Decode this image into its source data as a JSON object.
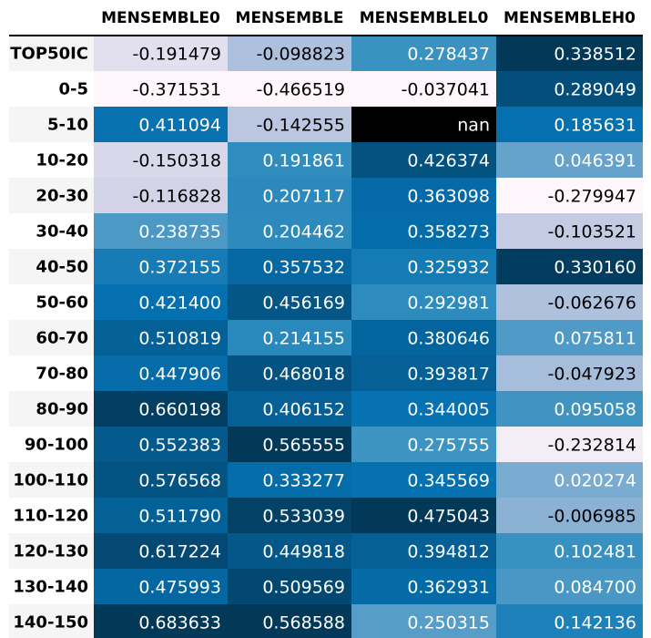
{
  "chart_data": {
    "type": "heatmap",
    "columns": [
      "MENSEMBLE0",
      "MENSEMBLE",
      "MENSEMBLEL0",
      "MENSEMBLEH0"
    ],
    "rows": [
      "TOP50IC",
      "0-5",
      "5-10",
      "10-20",
      "20-30",
      "30-40",
      "40-50",
      "50-60",
      "60-70",
      "70-80",
      "80-90",
      "90-100",
      "100-110",
      "110-120",
      "120-130",
      "130-140",
      "140-150"
    ],
    "values": [
      [
        -0.191479,
        -0.098823,
        0.278437,
        0.338512
      ],
      [
        -0.371531,
        -0.466519,
        -0.037041,
        0.289049
      ],
      [
        0.411094,
        -0.142555,
        null,
        0.185631
      ],
      [
        -0.150318,
        0.191861,
        0.426374,
        0.046391
      ],
      [
        -0.116828,
        0.207117,
        0.363098,
        -0.279947
      ],
      [
        0.238735,
        0.204462,
        0.358273,
        -0.103521
      ],
      [
        0.372155,
        0.357532,
        0.325932,
        0.33016
      ],
      [
        0.4214,
        0.456169,
        0.292981,
        -0.062676
      ],
      [
        0.510819,
        0.214155,
        0.380646,
        0.075811
      ],
      [
        0.447906,
        0.468018,
        0.393817,
        -0.047923
      ],
      [
        0.660198,
        0.406152,
        0.344005,
        0.095058
      ],
      [
        0.552383,
        0.565555,
        0.275755,
        -0.232814
      ],
      [
        0.576568,
        0.333277,
        0.345569,
        0.020274
      ],
      [
        0.51179,
        0.533039,
        0.475043,
        -0.006985
      ],
      [
        0.617224,
        0.449818,
        0.394812,
        0.102481
      ],
      [
        0.475993,
        0.509569,
        0.362931,
        0.0847
      ],
      [
        0.683633,
        0.568588,
        0.250315,
        0.142136
      ]
    ],
    "display_values": [
      [
        "-0.191479",
        "-0.098823",
        "0.278437",
        "0.338512"
      ],
      [
        "-0.371531",
        "-0.466519",
        "-0.037041",
        "0.289049"
      ],
      [
        "0.411094",
        "-0.142555",
        "nan",
        "0.185631"
      ],
      [
        "-0.150318",
        "0.191861",
        "0.426374",
        "0.046391"
      ],
      [
        "-0.116828",
        "0.207117",
        "0.363098",
        "-0.279947"
      ],
      [
        "0.238735",
        "0.204462",
        "0.358273",
        "-0.103521"
      ],
      [
        "0.372155",
        "0.357532",
        "0.325932",
        "0.330160"
      ],
      [
        "0.421400",
        "0.456169",
        "0.292981",
        "-0.062676"
      ],
      [
        "0.510819",
        "0.214155",
        "0.380646",
        "0.075811"
      ],
      [
        "0.447906",
        "0.468018",
        "0.393817",
        "-0.047923"
      ],
      [
        "0.660198",
        "0.406152",
        "0.344005",
        "0.095058"
      ],
      [
        "0.552383",
        "0.565555",
        "0.275755",
        "-0.232814"
      ],
      [
        "0.576568",
        "0.333277",
        "0.345569",
        "0.020274"
      ],
      [
        "0.511790",
        "0.533039",
        "0.475043",
        "-0.006985"
      ],
      [
        "0.617224",
        "0.449818",
        "0.394812",
        "0.102481"
      ],
      [
        "0.475993",
        "0.509569",
        "0.362931",
        "0.084700"
      ],
      [
        "0.683633",
        "0.568588",
        "0.250315",
        "0.142136"
      ]
    ],
    "colormap": "PuBu",
    "color_scaling": "per-column",
    "nan_color": "#000000",
    "header_line_color": "#000000",
    "row_header_stripe_color": "#f5f5f5"
  }
}
